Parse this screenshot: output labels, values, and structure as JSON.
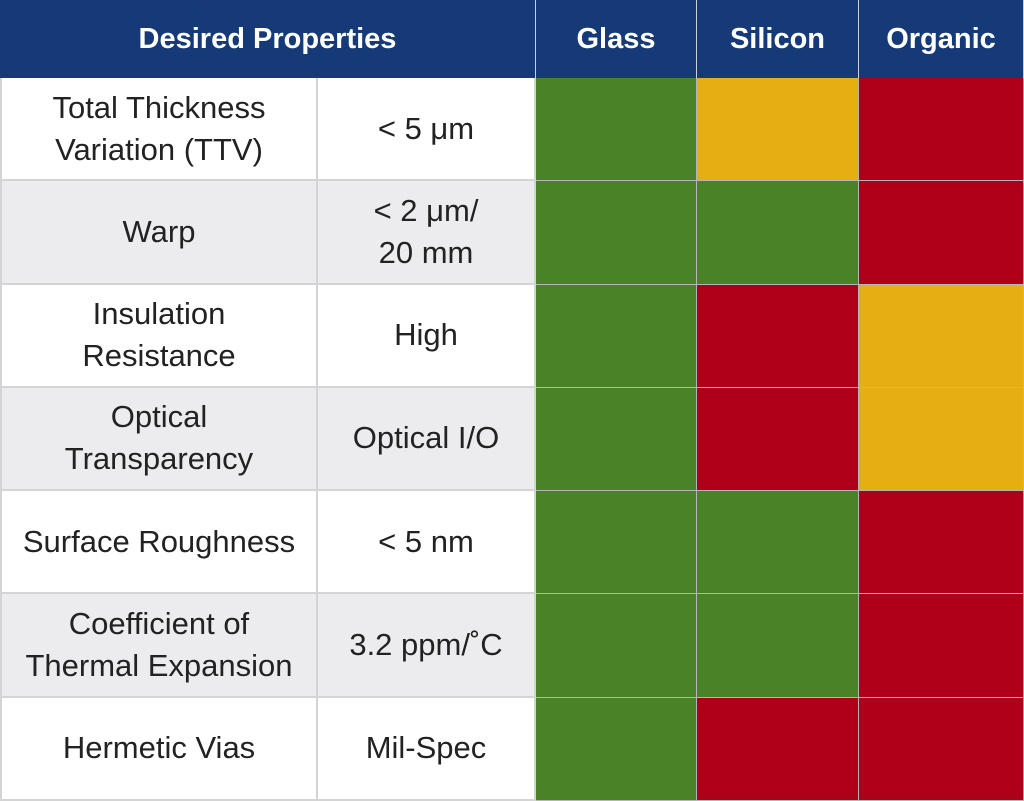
{
  "header": {
    "desired_properties": "Desired Properties",
    "glass": "Glass",
    "silicon": "Silicon",
    "organic": "Organic"
  },
  "rows": [
    {
      "property": "Total Thickness\nVariation (TTV)",
      "value": "< 5 μm",
      "glass": "green",
      "silicon": "amber",
      "organic": "red"
    },
    {
      "property": "Warp",
      "value": "< 2 μm/\n20 mm",
      "glass": "green",
      "silicon": "green",
      "organic": "red"
    },
    {
      "property": "Insulation\nResistance",
      "value": "High",
      "glass": "green",
      "silicon": "red",
      "organic": "amber"
    },
    {
      "property": "Optical\nTransparency",
      "value": "Optical I/O",
      "glass": "green",
      "silicon": "red",
      "organic": "amber"
    },
    {
      "property": "Surface Roughness",
      "value": "< 5 nm",
      "glass": "green",
      "silicon": "green",
      "organic": "red"
    },
    {
      "property": "Coefficient of\nThermal Expansion",
      "value": "3.2 ppm/˚C",
      "glass": "green",
      "silicon": "green",
      "organic": "red"
    },
    {
      "property": "Hermetic Vias",
      "value": "Mil-Spec",
      "glass": "green",
      "silicon": "red",
      "organic": "red"
    }
  ],
  "colors": {
    "header_bg": "#163a78",
    "green": "#4a8227",
    "amber": "#e5ae12",
    "red": "#ae0018",
    "alt_row_bg": "#ececef"
  }
}
